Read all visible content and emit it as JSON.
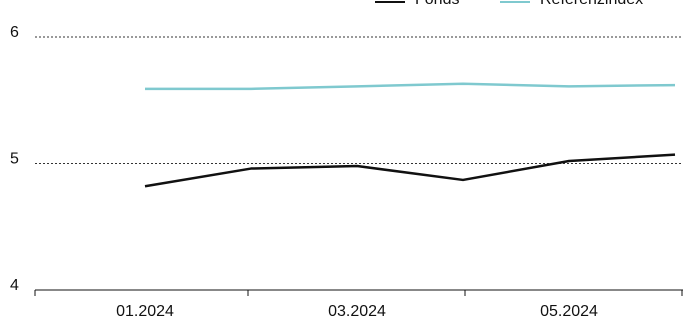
{
  "chart_data": {
    "type": "line",
    "categories": [
      "01.2024",
      null,
      "03.2024",
      null,
      "05.2024",
      null
    ],
    "series": [
      {
        "name": "Fonds",
        "color": "#111111",
        "values": [
          4.82,
          4.96,
          4.98,
          4.87,
          5.02,
          5.07
        ]
      },
      {
        "name": "Referenzindex",
        "color": "#7fc9cf",
        "values": [
          5.59,
          5.59,
          5.61,
          5.63,
          5.61,
          5.62
        ]
      }
    ],
    "ylim": [
      4,
      6
    ],
    "yticks": [
      4,
      5,
      6
    ],
    "grid": true
  }
}
